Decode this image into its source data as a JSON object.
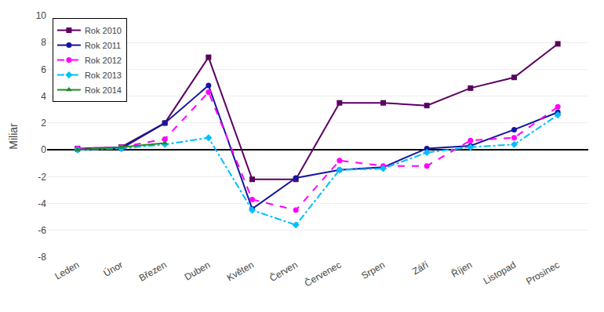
{
  "chart_data": {
    "type": "line",
    "categories": [
      "Leden",
      "Únor",
      "Březen",
      "Duben",
      "Květen",
      "Červen",
      "Červenec",
      "Srpen",
      "Září",
      "Říjen",
      "Listopad",
      "Prosinec"
    ],
    "series": [
      {
        "name": "Rok 2010",
        "color": "#5B0060",
        "marker": "square",
        "line_style": "solid",
        "values": [
          0.1,
          0.2,
          2.0,
          6.9,
          -2.2,
          -2.2,
          3.5,
          3.5,
          3.3,
          4.6,
          5.4,
          7.9
        ]
      },
      {
        "name": "Rok 2011",
        "color": "#1515A0",
        "marker": "circle",
        "line_style": "solid",
        "values": [
          0.0,
          0.1,
          2.0,
          4.8,
          -4.4,
          -2.1,
          -1.5,
          -1.3,
          0.1,
          0.3,
          1.5,
          2.8
        ]
      },
      {
        "name": "Rok 2012",
        "color": "#FF00FF",
        "marker": "circle",
        "line_style": "dashed",
        "values": [
          0.1,
          0.2,
          0.8,
          4.3,
          -3.7,
          -4.5,
          -0.8,
          -1.2,
          -1.2,
          0.7,
          0.9,
          3.2
        ]
      },
      {
        "name": "Rok 2013",
        "color": "#00BFFF",
        "marker": "diamond",
        "line_style": "dashdot",
        "values": [
          0.0,
          0.1,
          0.4,
          0.9,
          -4.5,
          -5.6,
          -1.5,
          -1.4,
          -0.2,
          0.2,
          0.4,
          2.6
        ]
      },
      {
        "name": "Rok 2014",
        "color": "#228B22",
        "marker": "triangle-up",
        "line_style": "solid",
        "values": [
          0.0,
          0.2,
          0.5,
          null,
          null,
          null,
          null,
          null,
          null,
          null,
          null,
          null
        ]
      }
    ],
    "ylabel": "Miliar",
    "ylim": [
      -8,
      10
    ],
    "yticks": [
      -8,
      -6,
      -4,
      -2,
      0,
      2,
      4,
      6,
      8,
      10
    ],
    "grid": true,
    "legend": "upper left"
  }
}
